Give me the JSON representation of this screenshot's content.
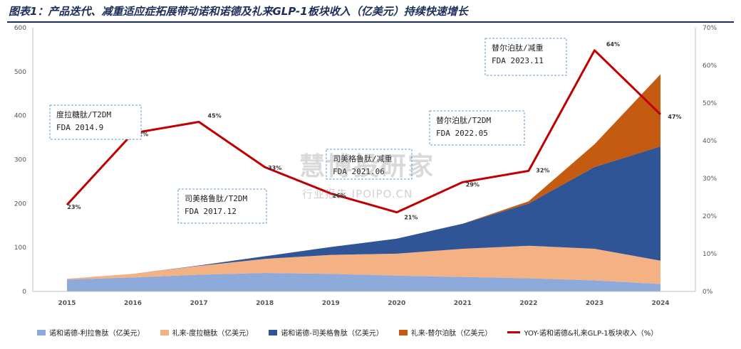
{
  "title": "图表1：产品迭代、减重适应症拓展带动诺和诺德及礼来GLP-1板块收入（亿美元）持续快速增长",
  "watermark": {
    "main": "慧博投研家",
    "sub": "行业报告 IPOIPO.CN"
  },
  "colors": {
    "nordisk_liraglutide": "#8eaadb",
    "lilly_dulaglutide": "#f4b183",
    "nordisk_semaglutide": "#2f5597",
    "lilly_tirzepatide": "#c55a11",
    "yoy": "#c00000"
  },
  "chart_data": {
    "type": "area",
    "title": "图表1：产品迭代、减重适应症拓展带动诺和诺德及礼来GLP-1板块收入（亿美元）持续快速增长",
    "x": [
      "2015",
      "2016",
      "2017",
      "2018",
      "2019",
      "2020",
      "2021",
      "2022",
      "2023",
      "2024"
    ],
    "y_left": {
      "min": 0,
      "max": 600,
      "ticks": [
        0,
        100,
        200,
        300,
        400,
        500,
        600
      ]
    },
    "y_right": {
      "min": 0,
      "max": 70,
      "ticks": [
        "0%",
        "10%",
        "20%",
        "30%",
        "40%",
        "50%",
        "60%",
        "70%"
      ]
    },
    "stacked": true,
    "series": [
      {
        "name": "诺和诺德-利拉鲁肽（亿美元）",
        "color_key": "nordisk_liraglutide",
        "values": [
          27,
          32,
          38,
          42,
          40,
          36,
          33,
          30,
          25,
          17
        ]
      },
      {
        "name": "礼来-度拉糖肽（亿美元）",
        "color_key": "lilly_dulaglutide",
        "values": [
          2,
          8,
          20,
          32,
          43,
          50,
          64,
          74,
          72,
          53
        ]
      },
      {
        "name": "诺和诺德-司美格鲁肽（亿美元）",
        "color_key": "nordisk_semaglutide",
        "values": [
          0,
          0,
          1,
          6,
          18,
          34,
          57,
          96,
          186,
          260
        ]
      },
      {
        "name": "礼来-替尔泊肽（亿美元）",
        "color_key": "lilly_tirzepatide",
        "values": [
          0,
          0,
          0,
          0,
          0,
          0,
          0,
          5,
          52,
          164
        ]
      }
    ],
    "line": {
      "name": "YOY-诺和诺德&礼来GLP-1板块收入（%）",
      "color_key": "yoy",
      "axis": "right",
      "values": [
        23,
        42,
        45,
        33,
        26,
        21,
        29,
        32,
        64,
        47
      ],
      "labels": [
        "23%",
        "42%",
        "45%",
        "33%",
        "26%",
        "21%",
        "29%",
        "32%",
        "64%",
        "47%"
      ]
    },
    "annotations": [
      {
        "lines": [
          "度拉糖肽/T2DM",
          "FDA 2014.9"
        ]
      },
      {
        "lines": [
          "司美格鲁肽/T2DM",
          "FDA 2017.12"
        ]
      },
      {
        "lines": [
          "司美格鲁肽/减重",
          "FDA 2021.06"
        ]
      },
      {
        "lines": [
          "替尔泊肽/T2DM",
          "FDA 2022.05"
        ]
      },
      {
        "lines": [
          "替尔泊肽/减重",
          "FDA 2023.11"
        ]
      }
    ],
    "legend_position": "bottom"
  }
}
